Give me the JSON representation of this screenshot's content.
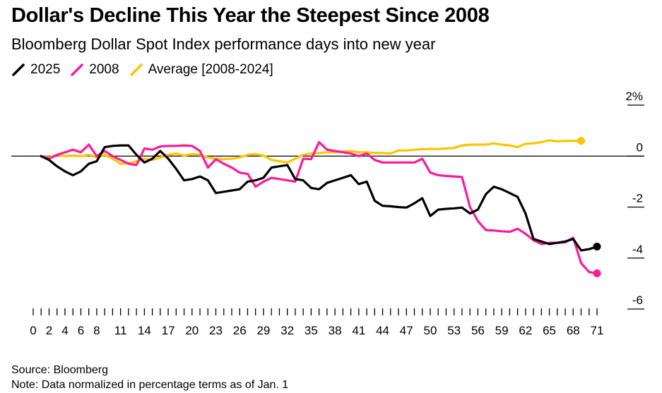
{
  "header": {
    "title": "Dollar's Decline This Year the Steepest Since 2008",
    "subtitle": "Bloomberg Dollar Spot Index performance days into new year"
  },
  "footer": {
    "source": "Source: Bloomberg",
    "note": "Note: Data normalized in percentage terms as of Jan. 1"
  },
  "chart_data": {
    "type": "line",
    "title": "Dollar's Decline This Year the Steepest Since 2008",
    "subtitle": "Bloomberg Dollar Spot Index performance days into new year",
    "xlabel": "",
    "ylabel": "",
    "xlim": [
      0,
      71
    ],
    "ylim": [
      -6,
      2
    ],
    "x_tick_labels": [
      "0",
      "2",
      "4",
      "6",
      "8",
      "11",
      "14",
      "17",
      "20",
      "23",
      "26",
      "29",
      "32",
      "35",
      "38",
      "41",
      "44",
      "47",
      "50",
      "53",
      "56",
      "59",
      "62",
      "65",
      "68",
      "71"
    ],
    "y_ticks": [
      {
        "value": 2,
        "label": "2%"
      },
      {
        "value": 0,
        "label": "0"
      },
      {
        "value": -2,
        "label": "-2"
      },
      {
        "value": -4,
        "label": "-4"
      },
      {
        "value": -6,
        "label": "-6"
      }
    ],
    "legend_position": "top-left",
    "grid": false,
    "series": [
      {
        "name": "2025",
        "color": "#000000",
        "end_marker": true,
        "points": [
          [
            1,
            0
          ],
          [
            2,
            -0.15
          ],
          [
            3,
            -0.4
          ],
          [
            4,
            -0.6
          ],
          [
            5,
            -0.75
          ],
          [
            6,
            -0.6
          ],
          [
            7,
            -0.3
          ],
          [
            8,
            -0.2
          ],
          [
            9,
            0.35
          ],
          [
            10,
            0.4
          ],
          [
            11,
            0.42
          ],
          [
            12,
            0.42
          ],
          [
            13,
            0.05
          ],
          [
            14,
            -0.25
          ],
          [
            15,
            -0.1
          ],
          [
            16,
            0.2
          ],
          [
            17,
            -0.1
          ],
          [
            18,
            -0.5
          ],
          [
            19,
            -0.95
          ],
          [
            20,
            -0.9
          ],
          [
            21,
            -0.8
          ],
          [
            22,
            -0.95
          ],
          [
            23,
            -1.45
          ],
          [
            24,
            -1.4
          ],
          [
            25,
            -1.35
          ],
          [
            26,
            -1.3
          ],
          [
            27,
            -1.0
          ],
          [
            28,
            -0.95
          ],
          [
            29,
            -0.85
          ],
          [
            30,
            -0.45
          ],
          [
            31,
            -0.4
          ],
          [
            32,
            -0.35
          ],
          [
            33,
            -0.9
          ],
          [
            34,
            -0.95
          ],
          [
            35,
            -1.25
          ],
          [
            36,
            -1.3
          ],
          [
            37,
            -1.05
          ],
          [
            38,
            -0.95
          ],
          [
            39,
            -0.85
          ],
          [
            40,
            -0.75
          ],
          [
            41,
            -1.1
          ],
          [
            42,
            -1.0
          ],
          [
            43,
            -1.75
          ],
          [
            44,
            -1.95
          ],
          [
            45,
            -1.97
          ],
          [
            46,
            -2.0
          ],
          [
            47,
            -2.02
          ],
          [
            48,
            -1.85
          ],
          [
            49,
            -1.65
          ],
          [
            50,
            -2.35
          ],
          [
            51,
            -2.1
          ],
          [
            52,
            -2.07
          ],
          [
            53,
            -2.05
          ],
          [
            54,
            -2.02
          ],
          [
            55,
            -2.25
          ],
          [
            56,
            -2.1
          ],
          [
            57,
            -1.5
          ],
          [
            58,
            -1.2
          ],
          [
            59,
            -1.3
          ],
          [
            60,
            -1.45
          ],
          [
            61,
            -1.6
          ],
          [
            62,
            -2.25
          ],
          [
            63,
            -3.25
          ],
          [
            64,
            -3.35
          ],
          [
            65,
            -3.45
          ],
          [
            66,
            -3.4
          ],
          [
            67,
            -3.35
          ],
          [
            68,
            -3.25
          ],
          [
            69,
            -3.7
          ],
          [
            70,
            -3.65
          ],
          [
            71,
            -3.55
          ]
        ]
      },
      {
        "name": "2008",
        "color": "#ff1a9c",
        "end_marker": true,
        "points": [
          [
            1,
            0
          ],
          [
            2,
            -0.1
          ],
          [
            3,
            0.05
          ],
          [
            4,
            0.15
          ],
          [
            5,
            0.25
          ],
          [
            6,
            0.15
          ],
          [
            7,
            0.45
          ],
          [
            8,
            0.0
          ],
          [
            9,
            0.2
          ],
          [
            10,
            0.0
          ],
          [
            11,
            -0.15
          ],
          [
            12,
            -0.3
          ],
          [
            13,
            -0.35
          ],
          [
            14,
            0.3
          ],
          [
            15,
            0.25
          ],
          [
            16,
            0.38
          ],
          [
            17,
            0.4
          ],
          [
            18,
            0.4
          ],
          [
            19,
            0.42
          ],
          [
            20,
            0.4
          ],
          [
            21,
            0.2
          ],
          [
            22,
            -0.45
          ],
          [
            23,
            -0.12
          ],
          [
            24,
            -0.3
          ],
          [
            25,
            -0.45
          ],
          [
            26,
            -0.65
          ],
          [
            27,
            -0.7
          ],
          [
            28,
            -1.2
          ],
          [
            29,
            -1.0
          ],
          [
            30,
            -0.85
          ],
          [
            31,
            -0.9
          ],
          [
            32,
            -0.95
          ],
          [
            33,
            -1.0
          ],
          [
            34,
            -0.1
          ],
          [
            35,
            -0.12
          ],
          [
            36,
            0.55
          ],
          [
            37,
            0.25
          ],
          [
            38,
            0.2
          ],
          [
            39,
            0.15
          ],
          [
            40,
            0.1
          ],
          [
            41,
            0.0
          ],
          [
            42,
            0.1
          ],
          [
            43,
            -0.15
          ],
          [
            44,
            -0.25
          ],
          [
            45,
            -0.25
          ],
          [
            46,
            -0.25
          ],
          [
            47,
            -0.25
          ],
          [
            48,
            -0.25
          ],
          [
            49,
            -0.1
          ],
          [
            50,
            -0.65
          ],
          [
            51,
            -0.75
          ],
          [
            52,
            -0.78
          ],
          [
            53,
            -0.8
          ],
          [
            54,
            -0.82
          ],
          [
            55,
            -2.0
          ],
          [
            56,
            -2.55
          ],
          [
            57,
            -2.9
          ],
          [
            58,
            -2.92
          ],
          [
            59,
            -2.95
          ],
          [
            60,
            -2.97
          ],
          [
            61,
            -2.85
          ],
          [
            62,
            -3.05
          ],
          [
            63,
            -3.3
          ],
          [
            64,
            -3.45
          ],
          [
            65,
            -3.4
          ],
          [
            66,
            -3.4
          ],
          [
            67,
            -3.38
          ],
          [
            68,
            -3.2
          ],
          [
            69,
            -4.2
          ],
          [
            70,
            -4.55
          ],
          [
            71,
            -4.6
          ]
        ]
      },
      {
        "name": "Average [2008-2024]",
        "color": "#ffc400",
        "end_marker": true,
        "points": [
          [
            1,
            0
          ],
          [
            2,
            -0.05
          ],
          [
            3,
            0.05
          ],
          [
            4,
            0.0
          ],
          [
            5,
            0.02
          ],
          [
            6,
            0.0
          ],
          [
            7,
            0.05
          ],
          [
            8,
            -0.05
          ],
          [
            9,
            0.05
          ],
          [
            10,
            -0.1
          ],
          [
            11,
            -0.3
          ],
          [
            12,
            -0.28
          ],
          [
            13,
            -0.2
          ],
          [
            14,
            -0.1
          ],
          [
            15,
            -0.15
          ],
          [
            16,
            -0.05
          ],
          [
            17,
            0.05
          ],
          [
            18,
            0.1
          ],
          [
            19,
            0.02
          ],
          [
            20,
            0.08
          ],
          [
            21,
            0.05
          ],
          [
            22,
            -0.05
          ],
          [
            23,
            -0.1
          ],
          [
            24,
            -0.12
          ],
          [
            25,
            -0.1
          ],
          [
            26,
            -0.05
          ],
          [
            27,
            0.05
          ],
          [
            28,
            0.08
          ],
          [
            29,
            0.02
          ],
          [
            30,
            -0.15
          ],
          [
            31,
            -0.2
          ],
          [
            32,
            -0.25
          ],
          [
            33,
            -0.1
          ],
          [
            34,
            0.05
          ],
          [
            35,
            0.1
          ],
          [
            36,
            0.12
          ],
          [
            37,
            0.15
          ],
          [
            38,
            0.15
          ],
          [
            39,
            0.18
          ],
          [
            40,
            0.2
          ],
          [
            41,
            0.15
          ],
          [
            42,
            0.15
          ],
          [
            43,
            0.12
          ],
          [
            44,
            0.12
          ],
          [
            45,
            0.1
          ],
          [
            46,
            0.22
          ],
          [
            47,
            0.22
          ],
          [
            48,
            0.25
          ],
          [
            49,
            0.27
          ],
          [
            50,
            0.28
          ],
          [
            51,
            0.28
          ],
          [
            52,
            0.3
          ],
          [
            53,
            0.32
          ],
          [
            54,
            0.42
          ],
          [
            55,
            0.45
          ],
          [
            56,
            0.45
          ],
          [
            57,
            0.45
          ],
          [
            58,
            0.5
          ],
          [
            59,
            0.45
          ],
          [
            60,
            0.42
          ],
          [
            61,
            0.35
          ],
          [
            62,
            0.48
          ],
          [
            63,
            0.5
          ],
          [
            64,
            0.55
          ],
          [
            65,
            0.62
          ],
          [
            66,
            0.58
          ],
          [
            67,
            0.6
          ],
          [
            68,
            0.6
          ],
          [
            69,
            0.6
          ]
        ]
      }
    ]
  }
}
